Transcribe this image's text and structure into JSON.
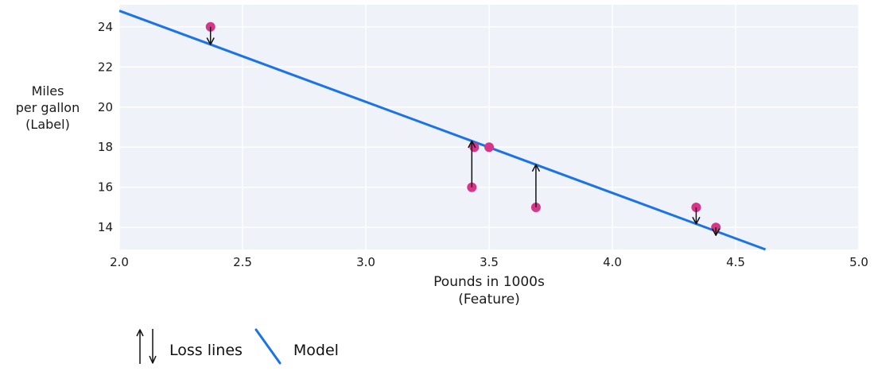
{
  "chart_data": {
    "type": "scatter",
    "xlabel_lines": [
      "Pounds in 1000s",
      "(Feature)"
    ],
    "ylabel_lines": [
      "Miles",
      "per gallon",
      "(Label)"
    ],
    "xlim": [
      2.0,
      5.0
    ],
    "ylim": [
      12.9,
      25.1
    ],
    "xticks": [
      "2.0",
      "2.5",
      "3.0",
      "3.5",
      "4.0",
      "4.5",
      "5.0"
    ],
    "yticks": [
      "14",
      "16",
      "18",
      "20",
      "22",
      "24"
    ],
    "points": [
      {
        "x": 2.37,
        "y": 24
      },
      {
        "x": 3.44,
        "y": 18
      },
      {
        "x": 3.5,
        "y": 18
      },
      {
        "x": 3.43,
        "y": 16
      },
      {
        "x": 3.69,
        "y": 15
      },
      {
        "x": 4.34,
        "y": 15
      },
      {
        "x": 4.42,
        "y": 14
      }
    ],
    "model_line": {
      "slope": -4.54,
      "intercept": 33.88
    },
    "loss_arrows": [
      {
        "x": 2.37,
        "from_y": 24,
        "dir": "down"
      },
      {
        "x": 3.43,
        "from_y": 16,
        "dir": "up"
      },
      {
        "x": 3.69,
        "from_y": 15,
        "dir": "up"
      },
      {
        "x": 4.34,
        "from_y": 15,
        "dir": "down"
      },
      {
        "x": 4.42,
        "from_y": 14,
        "dir": "down"
      }
    ],
    "grid": true,
    "legend_position": "bottom-left",
    "legend": {
      "loss_label": "Loss lines",
      "model_label": "Model"
    },
    "colors": {
      "point": "#d63689",
      "model_line": "#1a73e8",
      "plot_bg": "#eff2f8",
      "grid": "#ffffff",
      "arrow": "#111111",
      "text": "#1a1a1a"
    }
  }
}
